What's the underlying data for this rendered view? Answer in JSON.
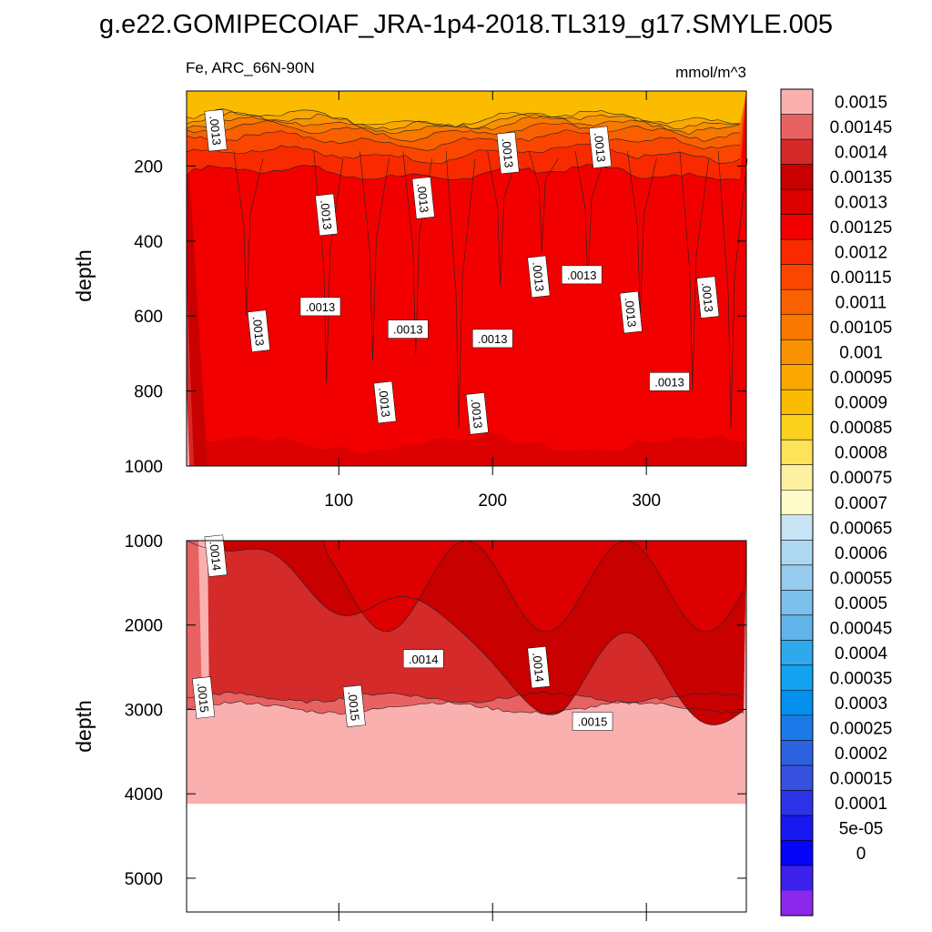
{
  "title": "g.e22.GOMIPECOIAF_JRA-1p4-2018.TL319_g17.SMYLE.005",
  "chart_data": [
    {
      "type": "contour",
      "panel": "upper",
      "left_title": "Fe, ARC_66N-90N",
      "units": "mmol/m^3",
      "xlim": [
        1,
        365
      ],
      "ylim": [
        1000,
        0
      ],
      "xticks": [
        100,
        200,
        300
      ],
      "xtick_labels": [
        "100",
        "200",
        "300"
      ],
      "yticks": [
        200,
        400,
        600,
        800,
        1000
      ],
      "ytick_labels": [
        "200",
        "400",
        "600",
        "800",
        "1000"
      ],
      "ylabel": "depth",
      "contour_labels": [
        {
          "text": ".0013",
          "x": 20,
          "y": 105
        },
        {
          "text": ".0013",
          "x": 92,
          "y": 330
        },
        {
          "text": ".0013",
          "x": 88,
          "y": 575
        },
        {
          "text": ".0013",
          "x": 48,
          "y": 640
        },
        {
          "text": ".0013",
          "x": 155,
          "y": 285
        },
        {
          "text": ".0013",
          "x": 145,
          "y": 635
        },
        {
          "text": ".0013",
          "x": 130,
          "y": 830
        },
        {
          "text": ".0013",
          "x": 190,
          "y": 860
        },
        {
          "text": ".0013",
          "x": 200,
          "y": 660
        },
        {
          "text": ".0013",
          "x": 210,
          "y": 165
        },
        {
          "text": ".0013",
          "x": 230,
          "y": 495
        },
        {
          "text": ".0013",
          "x": 258,
          "y": 490
        },
        {
          "text": ".0013",
          "x": 270,
          "y": 150
        },
        {
          "text": ".0013",
          "x": 290,
          "y": 590
        },
        {
          "text": ".0013",
          "x": 315,
          "y": 775
        },
        {
          "text": ".0013",
          "x": 340,
          "y": 550
        }
      ]
    },
    {
      "type": "contour",
      "panel": "lower",
      "xlim": [
        1,
        365
      ],
      "ylim": [
        5400,
        1000
      ],
      "yticks": [
        1000,
        2000,
        3000,
        4000,
        5000
      ],
      "ytick_labels": [
        "1000",
        "2000",
        "3000",
        "4000",
        "5000"
      ],
      "ylabel": "depth",
      "ocean_bottom_depth": 4120,
      "contour_labels": [
        {
          "text": ".0014",
          "x": 20,
          "y": 1180
        },
        {
          "text": ".0015",
          "x": 12,
          "y": 2860
        },
        {
          "text": ".0014",
          "x": 155,
          "y": 2400
        },
        {
          "text": ".0014",
          "x": 230,
          "y": 2500
        },
        {
          "text": ".0015",
          "x": 110,
          "y": 2960
        },
        {
          "text": ".0015",
          "x": 265,
          "y": 3140
        }
      ]
    }
  ],
  "colorbar": {
    "labels": [
      "0.0015",
      "0.00145",
      "0.0014",
      "0.00135",
      "0.0013",
      "0.00125",
      "0.0012",
      "0.00115",
      "0.0011",
      "0.00105",
      "0.001",
      "0.00095",
      "0.0009",
      "0.00085",
      "0.0008",
      "0.00075",
      "0.0007",
      "0.00065",
      "0.0006",
      "0.00055",
      "0.0005",
      "0.00045",
      "0.0004",
      "0.00035",
      "0.0003",
      "0.00025",
      "0.0002",
      "0.00015",
      "0.0001",
      "5e-05",
      "0"
    ],
    "colors": [
      "#fbb0b0",
      "#e86262",
      "#d42a2a",
      "#c80000",
      "#dc0000",
      "#f20000",
      "#fa2a00",
      "#fa4600",
      "#f86000",
      "#f87800",
      "#f89200",
      "#faa800",
      "#fbbc00",
      "#fcd21e",
      "#fde35a",
      "#fdf0a0",
      "#fefcc8",
      "#c6e4f4",
      "#aed8f2",
      "#96ccee",
      "#7ec0ec",
      "#60b4ea",
      "#30a8ec",
      "#12a2f0",
      "#0490ec",
      "#1c7ae8",
      "#2c62e0",
      "#3850e0",
      "#2c34e8",
      "#1818f0",
      "#0404f8",
      "#3c20ec",
      "#8c28ec"
    ]
  }
}
